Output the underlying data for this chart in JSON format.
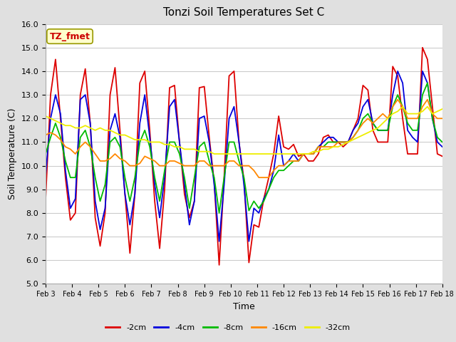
{
  "title": "Tonzi Soil Temperatures Set C",
  "xlabel": "Time",
  "ylabel": "Soil Temperature (C)",
  "ylim": [
    5.0,
    16.0
  ],
  "yticks": [
    5.0,
    6.0,
    7.0,
    8.0,
    9.0,
    10.0,
    11.0,
    12.0,
    13.0,
    14.0,
    15.0,
    16.0
  ],
  "xtick_labels": [
    "Feb 3",
    "Feb 4",
    "Feb 5",
    "Feb 6",
    "Feb 7",
    "Feb 8",
    "Feb 9",
    "Feb 10",
    "Feb 11",
    "Feb 12",
    "Feb 13",
    "Feb 14",
    "Feb 15",
    "Feb 16",
    "Feb 17",
    "Feb 18"
  ],
  "colors": {
    "-2cm": "#DD0000",
    "-4cm": "#0000DD",
    "-8cm": "#00BB00",
    "-16cm": "#FF8800",
    "-32cm": "#EEEE00"
  },
  "legend_labels": [
    "-2cm",
    "-4cm",
    "-8cm",
    "-16cm",
    "-32cm"
  ],
  "annotation_text": "TZ_fmet",
  "annotation_bg": "#FFFFCC",
  "annotation_border": "#999900",
  "figure_bg": "#E0E0E0",
  "plot_bg": "#FFFFFF",
  "grid_color": "#CCCCCC",
  "linewidth": 1.3,
  "series": {
    "-2cm": [
      8.6,
      13.0,
      14.5,
      12.0,
      9.5,
      7.7,
      8.0,
      13.0,
      14.1,
      11.8,
      7.8,
      6.6,
      8.0,
      13.0,
      14.15,
      11.5,
      8.8,
      6.3,
      8.8,
      13.5,
      14.0,
      11.5,
      8.5,
      6.5,
      9.0,
      13.3,
      13.4,
      11.0,
      8.8,
      7.8,
      8.5,
      13.3,
      13.35,
      11.2,
      9.3,
      5.8,
      9.5,
      13.8,
      14.0,
      11.0,
      9.4,
      5.9,
      7.5,
      7.4,
      8.6,
      9.5,
      10.5,
      12.1,
      10.8,
      10.7,
      10.9,
      10.4,
      10.5,
      10.2,
      10.2,
      10.5,
      11.2,
      11.3,
      11.0,
      11.0,
      10.8,
      11.0,
      11.5,
      12.0,
      13.4,
      13.2,
      11.5,
      11.0,
      11.0,
      11.0,
      14.2,
      13.8,
      12.0,
      10.5,
      10.5,
      10.5,
      15.0,
      14.5,
      12.5,
      10.5,
      10.4
    ],
    "-4cm": [
      9.6,
      12.0,
      13.0,
      12.2,
      9.8,
      8.2,
      8.6,
      12.8,
      13.0,
      11.8,
      8.5,
      7.3,
      8.2,
      11.5,
      12.2,
      11.2,
      8.8,
      7.5,
      8.8,
      11.8,
      13.0,
      11.2,
      9.2,
      7.8,
      9.5,
      12.5,
      12.8,
      11.0,
      9.2,
      7.5,
      8.5,
      12.0,
      12.1,
      11.0,
      9.2,
      6.8,
      9.2,
      12.0,
      12.5,
      11.0,
      9.2,
      6.8,
      8.2,
      8.0,
      8.6,
      9.0,
      9.8,
      11.3,
      10.0,
      10.2,
      10.5,
      10.2,
      10.5,
      10.5,
      10.5,
      10.8,
      11.0,
      11.2,
      11.2,
      11.0,
      11.0,
      11.0,
      11.5,
      11.8,
      12.5,
      12.8,
      11.8,
      11.5,
      11.5,
      11.5,
      13.0,
      14.0,
      13.5,
      11.5,
      11.2,
      11.0,
      14.0,
      13.5,
      12.0,
      11.0,
      10.8
    ],
    "-8cm": [
      10.5,
      11.2,
      11.8,
      11.2,
      10.2,
      9.5,
      9.5,
      11.2,
      11.5,
      10.8,
      9.5,
      8.5,
      9.2,
      11.0,
      11.2,
      10.8,
      9.5,
      8.5,
      9.5,
      11.0,
      11.5,
      10.8,
      9.5,
      8.5,
      9.8,
      11.0,
      11.0,
      10.5,
      9.5,
      8.2,
      9.5,
      10.8,
      11.0,
      10.2,
      9.5,
      8.0,
      9.5,
      11.0,
      11.0,
      10.2,
      9.5,
      8.1,
      8.5,
      8.2,
      8.5,
      9.0,
      9.5,
      9.8,
      9.8,
      10.0,
      10.2,
      10.2,
      10.5,
      10.5,
      10.5,
      10.8,
      10.8,
      11.0,
      11.0,
      11.0,
      11.0,
      11.0,
      11.2,
      11.5,
      12.0,
      12.2,
      11.8,
      11.5,
      11.5,
      11.5,
      12.5,
      13.0,
      12.5,
      11.8,
      11.5,
      11.5,
      13.0,
      13.5,
      12.0,
      11.2,
      11.0
    ],
    "-16cm": [
      11.3,
      11.4,
      11.3,
      11.1,
      10.8,
      10.7,
      10.5,
      10.8,
      11.0,
      10.8,
      10.5,
      10.2,
      10.2,
      10.3,
      10.5,
      10.3,
      10.2,
      10.0,
      10.0,
      10.1,
      10.4,
      10.3,
      10.2,
      10.0,
      10.0,
      10.2,
      10.2,
      10.1,
      10.0,
      10.0,
      10.0,
      10.2,
      10.2,
      10.0,
      10.0,
      10.0,
      10.0,
      10.2,
      10.2,
      10.0,
      10.0,
      10.0,
      9.8,
      9.5,
      9.5,
      9.5,
      9.8,
      10.0,
      10.0,
      10.2,
      10.2,
      10.2,
      10.5,
      10.5,
      10.5,
      10.8,
      10.8,
      10.8,
      10.8,
      11.0,
      11.0,
      11.0,
      11.2,
      11.5,
      11.8,
      12.0,
      11.8,
      12.0,
      12.2,
      12.0,
      12.5,
      12.8,
      12.5,
      12.0,
      12.0,
      12.0,
      12.5,
      12.8,
      12.2,
      12.0,
      12.0
    ],
    "-32cm": [
      12.1,
      12.0,
      11.9,
      11.8,
      11.7,
      11.7,
      11.6,
      11.6,
      11.7,
      11.6,
      11.5,
      11.6,
      11.5,
      11.5,
      11.4,
      11.3,
      11.3,
      11.2,
      11.1,
      11.1,
      11.1,
      11.0,
      11.0,
      11.0,
      10.9,
      10.9,
      10.8,
      10.8,
      10.7,
      10.7,
      10.7,
      10.6,
      10.6,
      10.6,
      10.5,
      10.5,
      10.5,
      10.5,
      10.5,
      10.5,
      10.5,
      10.5,
      10.5,
      10.5,
      10.5,
      10.5,
      10.5,
      10.5,
      10.5,
      10.5,
      10.5,
      10.5,
      10.5,
      10.5,
      10.6,
      10.6,
      10.7,
      10.7,
      10.8,
      10.8,
      10.9,
      11.0,
      11.1,
      11.2,
      11.3,
      11.4,
      11.5,
      11.6,
      11.8,
      12.0,
      12.2,
      12.3,
      12.5,
      12.2,
      12.2,
      12.2,
      12.3,
      12.5,
      12.2,
      12.3,
      12.4
    ]
  }
}
